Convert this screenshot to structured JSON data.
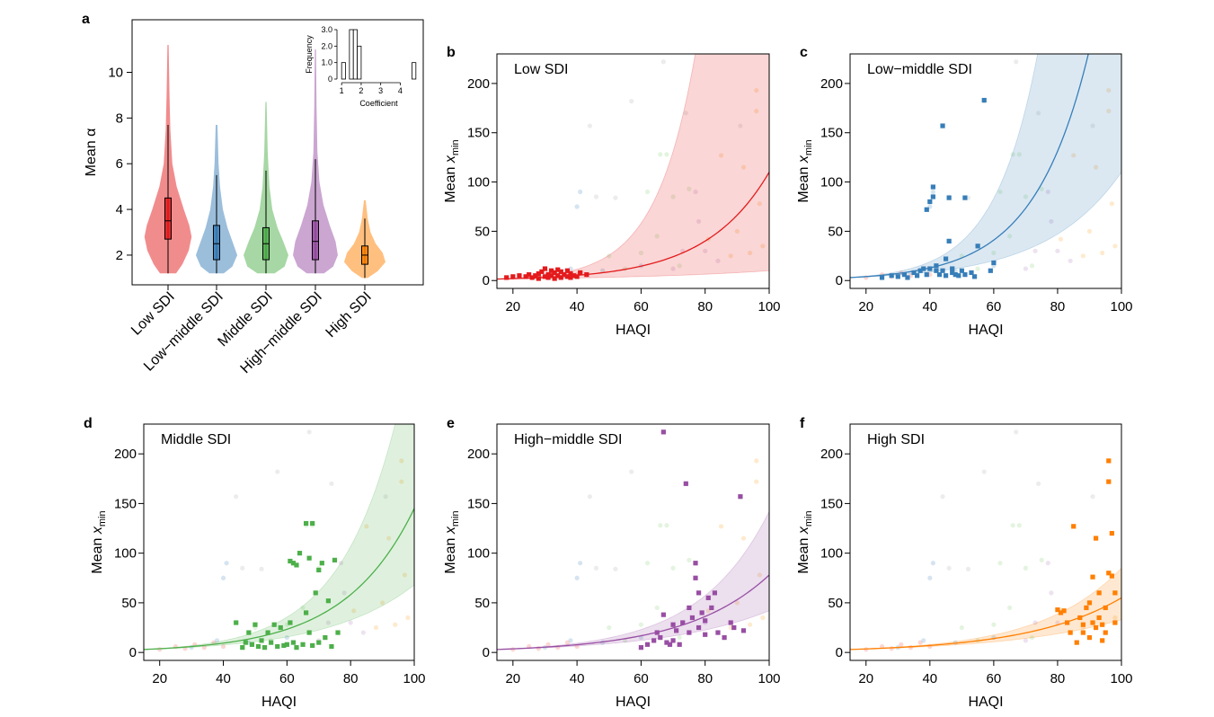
{
  "chart_data": [
    {
      "panel": "a",
      "type": "violin",
      "ylabel": "Mean α",
      "yticks": [
        2,
        4,
        6,
        8,
        10
      ],
      "ylim": [
        0.7,
        12.3
      ],
      "categories": [
        "Low SDI",
        "Low−middle SDI",
        "Middle SDI",
        "High−middle SDI",
        "High SDI"
      ],
      "colors": [
        "#e41a1c",
        "#377eb8",
        "#4daf4a",
        "#984ea3",
        "#ff7f00"
      ],
      "groups": [
        {
          "min": 1.2,
          "q1": 2.7,
          "median": 3.5,
          "q3": 4.5,
          "whisker_low": 1.2,
          "whisker_high": 7.7,
          "max": 11.2,
          "shape": [
            [
              1.2,
              0.28
            ],
            [
              1.6,
              0.5
            ],
            [
              2.2,
              0.72
            ],
            [
              2.8,
              0.82
            ],
            [
              3.3,
              0.74
            ],
            [
              4.0,
              0.55
            ],
            [
              5.0,
              0.3
            ],
            [
              6.0,
              0.15
            ],
            [
              7.5,
              0.08
            ],
            [
              9.0,
              0.05
            ],
            [
              11.2,
              0.02
            ]
          ]
        },
        {
          "min": 1.2,
          "q1": 1.8,
          "median": 2.5,
          "q3": 3.3,
          "whisker_low": 1.2,
          "whisker_high": 5.5,
          "max": 7.7,
          "shape": [
            [
              1.2,
              0.25
            ],
            [
              1.5,
              0.55
            ],
            [
              2.0,
              0.72
            ],
            [
              2.6,
              0.55
            ],
            [
              3.2,
              0.38
            ],
            [
              4.0,
              0.22
            ],
            [
              5.0,
              0.12
            ],
            [
              6.0,
              0.07
            ],
            [
              7.7,
              0.03
            ]
          ]
        },
        {
          "min": 1.2,
          "q1": 1.8,
          "median": 2.5,
          "q3": 3.2,
          "whisker_low": 1.2,
          "whisker_high": 5.7,
          "max": 8.7,
          "shape": [
            [
              1.2,
              0.3
            ],
            [
              1.5,
              0.65
            ],
            [
              2.0,
              0.78
            ],
            [
              2.6,
              0.6
            ],
            [
              3.2,
              0.4
            ],
            [
              4.0,
              0.22
            ],
            [
              5.0,
              0.12
            ],
            [
              6.5,
              0.06
            ],
            [
              8.7,
              0.02
            ]
          ]
        },
        {
          "min": 1.2,
          "q1": 1.8,
          "median": 2.6,
          "q3": 3.5,
          "whisker_low": 1.2,
          "whisker_high": 6.2,
          "max": 11.0,
          "shape": [
            [
              1.2,
              0.3
            ],
            [
              1.5,
              0.62
            ],
            [
              2.0,
              0.78
            ],
            [
              2.6,
              0.7
            ],
            [
              3.3,
              0.5
            ],
            [
              4.2,
              0.28
            ],
            [
              5.2,
              0.14
            ],
            [
              6.5,
              0.07
            ],
            [
              8.5,
              0.04
            ],
            [
              11.0,
              0.02
            ]
          ]
        },
        {
          "min": 1.0,
          "q1": 1.6,
          "median": 2.0,
          "q3": 2.4,
          "whisker_low": 1.0,
          "whisker_high": 3.6,
          "max": 4.4,
          "shape": [
            [
              1.0,
              0.1
            ],
            [
              1.3,
              0.45
            ],
            [
              1.7,
              0.72
            ],
            [
              2.1,
              0.62
            ],
            [
              2.5,
              0.38
            ],
            [
              3.0,
              0.2
            ],
            [
              3.6,
              0.1
            ],
            [
              4.4,
              0.03
            ]
          ]
        }
      ],
      "inset": {
        "type": "histogram",
        "xlabel": "Coefficient",
        "ylabel": "Frequency",
        "xticks": [
          1,
          2,
          3,
          4
        ],
        "yticks": [
          "0",
          "1.0",
          "2.0",
          "3.0"
        ],
        "bins": [
          [
            1.0,
            1.2,
            1
          ],
          [
            1.2,
            1.4,
            0
          ],
          [
            1.4,
            1.6,
            3
          ],
          [
            1.6,
            1.8,
            3
          ],
          [
            1.8,
            2.0,
            2
          ],
          [
            4.6,
            4.8,
            1
          ]
        ]
      }
    },
    {
      "panel": "b",
      "type": "scatter",
      "title": "Low SDI",
      "color": "#e41a1c",
      "xlabel": "HAQI",
      "ylabel": "Mean x",
      "ylabel_sub": "min",
      "xlim": [
        15,
        100
      ],
      "ylim": [
        -8,
        230
      ],
      "xticks": [
        20,
        40,
        60,
        80,
        100
      ],
      "yticks": [
        0,
        50,
        100,
        150,
        200
      ],
      "fit": {
        "x0": 15,
        "y0": 1.5,
        "y100": 110,
        "lo100": 10,
        "hi100": 1500
      },
      "points": [
        [
          18,
          3
        ],
        [
          20,
          4
        ],
        [
          22,
          5
        ],
        [
          24,
          4
        ],
        [
          25,
          6
        ],
        [
          26,
          3
        ],
        [
          27,
          5
        ],
        [
          28,
          7
        ],
        [
          28,
          2
        ],
        [
          29,
          9
        ],
        [
          30,
          4
        ],
        [
          30,
          12
        ],
        [
          31,
          6
        ],
        [
          31,
          3
        ],
        [
          32,
          10
        ],
        [
          32,
          5
        ],
        [
          33,
          8
        ],
        [
          33,
          2
        ],
        [
          34,
          11
        ],
        [
          34,
          5
        ],
        [
          35,
          3
        ],
        [
          35,
          9
        ],
        [
          36,
          6
        ],
        [
          37,
          4
        ],
        [
          37,
          10
        ],
        [
          38,
          7
        ],
        [
          38,
          3
        ],
        [
          39,
          5
        ],
        [
          40,
          4
        ],
        [
          41,
          8
        ],
        [
          43,
          6
        ]
      ]
    },
    {
      "panel": "c",
      "type": "scatter",
      "title": "Low−middle SDI",
      "color": "#377eb8",
      "xlabel": "HAQI",
      "ylabel": "Mean x",
      "ylabel_sub": "min",
      "xlim": [
        15,
        100
      ],
      "ylim": [
        -8,
        230
      ],
      "xticks": [
        20,
        40,
        60,
        80,
        100
      ],
      "yticks": [
        0,
        50,
        100,
        150,
        200
      ],
      "fit": {
        "x0": 15,
        "y0": 3,
        "y100": 420,
        "lo100": 110,
        "hi100": 1600
      },
      "points": [
        [
          25,
          3
        ],
        [
          28,
          5
        ],
        [
          30,
          4
        ],
        [
          32,
          6
        ],
        [
          33,
          3
        ],
        [
          35,
          8
        ],
        [
          36,
          5
        ],
        [
          37,
          10
        ],
        [
          38,
          12
        ],
        [
          39,
          6
        ],
        [
          39,
          72
        ],
        [
          40,
          80
        ],
        [
          40,
          12
        ],
        [
          41,
          95
        ],
        [
          41,
          85
        ],
        [
          42,
          10
        ],
        [
          42,
          15
        ],
        [
          43,
          6
        ],
        [
          44,
          157
        ],
        [
          44,
          10
        ],
        [
          45,
          5
        ],
        [
          45,
          22
        ],
        [
          46,
          84
        ],
        [
          46,
          40
        ],
        [
          47,
          12
        ],
        [
          47,
          8
        ],
        [
          48,
          6
        ],
        [
          49,
          5
        ],
        [
          50,
          10
        ],
        [
          51,
          84
        ],
        [
          51,
          6
        ],
        [
          53,
          8
        ],
        [
          54,
          4
        ],
        [
          55,
          35
        ],
        [
          57,
          183
        ],
        [
          59,
          10
        ],
        [
          60,
          18
        ]
      ]
    },
    {
      "panel": "d",
      "type": "scatter",
      "title": "Middle SDI",
      "color": "#4daf4a",
      "xlabel": "HAQI",
      "ylabel": "Mean x",
      "ylabel_sub": "min",
      "xlim": [
        15,
        100
      ],
      "ylim": [
        -8,
        230
      ],
      "xticks": [
        20,
        40,
        60,
        80,
        100
      ],
      "yticks": [
        0,
        50,
        100,
        150,
        200
      ],
      "fit": {
        "x0": 15,
        "y0": 3,
        "y100": 145,
        "lo100": 68,
        "hi100": 320
      },
      "points": [
        [
          44,
          30
        ],
        [
          46,
          5
        ],
        [
          47,
          10
        ],
        [
          48,
          20
        ],
        [
          49,
          8
        ],
        [
          50,
          28
        ],
        [
          51,
          6
        ],
        [
          52,
          12
        ],
        [
          53,
          5
        ],
        [
          54,
          20
        ],
        [
          55,
          10
        ],
        [
          56,
          28
        ],
        [
          57,
          6
        ],
        [
          58,
          25
        ],
        [
          59,
          7
        ],
        [
          60,
          8
        ],
        [
          61,
          92
        ],
        [
          61,
          30
        ],
        [
          62,
          90
        ],
        [
          62,
          10
        ],
        [
          63,
          88
        ],
        [
          63,
          5
        ],
        [
          64,
          100
        ],
        [
          65,
          8
        ],
        [
          66,
          130
        ],
        [
          66,
          40
        ],
        [
          67,
          95
        ],
        [
          67,
          20
        ],
        [
          68,
          130
        ],
        [
          68,
          7
        ],
        [
          69,
          60
        ],
        [
          70,
          83
        ],
        [
          70,
          10
        ],
        [
          71,
          90
        ],
        [
          72,
          15
        ],
        [
          73,
          52
        ],
        [
          74,
          6
        ],
        [
          75,
          93
        ],
        [
          76,
          20
        ]
      ]
    },
    {
      "panel": "e",
      "type": "scatter",
      "title": "High−middle SDI",
      "color": "#984ea3",
      "xlabel": "HAQI",
      "ylabel": "Mean x",
      "ylabel_sub": "min",
      "xlim": [
        15,
        100
      ],
      "ylim": [
        -8,
        230
      ],
      "xticks": [
        20,
        40,
        60,
        80,
        100
      ],
      "yticks": [
        0,
        50,
        100,
        150,
        200
      ],
      "fit": {
        "x0": 15,
        "y0": 3,
        "y100": 78,
        "lo100": 42,
        "hi100": 142
      },
      "points": [
        [
          60,
          5
        ],
        [
          62,
          8
        ],
        [
          64,
          12
        ],
        [
          65,
          20
        ],
        [
          66,
          15
        ],
        [
          67,
          38
        ],
        [
          67,
          222
        ],
        [
          68,
          10
        ],
        [
          69,
          8
        ],
        [
          70,
          12
        ],
        [
          70,
          28
        ],
        [
          71,
          22
        ],
        [
          72,
          8
        ],
        [
          73,
          30
        ],
        [
          74,
          170
        ],
        [
          75,
          20
        ],
        [
          75,
          45
        ],
        [
          76,
          35
        ],
        [
          77,
          90
        ],
        [
          77,
          75
        ],
        [
          78,
          60
        ],
        [
          78,
          25
        ],
        [
          79,
          40
        ],
        [
          80,
          18
        ],
        [
          80,
          32
        ],
        [
          81,
          55
        ],
        [
          82,
          45
        ],
        [
          83,
          60
        ],
        [
          84,
          20
        ],
        [
          86,
          15
        ],
        [
          88,
          30
        ],
        [
          89,
          25
        ],
        [
          91,
          157
        ],
        [
          92,
          22
        ]
      ]
    },
    {
      "panel": "f",
      "type": "scatter",
      "title": "High SDI",
      "color": "#ff7f00",
      "xlabel": "HAQI",
      "ylabel": "Mean x",
      "ylabel_sub": "min",
      "xlim": [
        15,
        100
      ],
      "ylim": [
        -8,
        230
      ],
      "xticks": [
        20,
        40,
        60,
        80,
        100
      ],
      "yticks": [
        0,
        50,
        100,
        150,
        200
      ],
      "fit": {
        "x0": 15,
        "y0": 3,
        "y100": 55,
        "lo100": 33,
        "hi100": 85
      },
      "points": [
        [
          80,
          43
        ],
        [
          81,
          40
        ],
        [
          82,
          42
        ],
        [
          83,
          30
        ],
        [
          84,
          20
        ],
        [
          85,
          127
        ],
        [
          86,
          10
        ],
        [
          87,
          35
        ],
        [
          88,
          28
        ],
        [
          88,
          20
        ],
        [
          89,
          45
        ],
        [
          90,
          50
        ],
        [
          90,
          15
        ],
        [
          91,
          76
        ],
        [
          91,
          30
        ],
        [
          92,
          115
        ],
        [
          92,
          25
        ],
        [
          93,
          60
        ],
        [
          93,
          35
        ],
        [
          94,
          28
        ],
        [
          94,
          12
        ],
        [
          95,
          45
        ],
        [
          95,
          20
        ],
        [
          96,
          193
        ],
        [
          96,
          172
        ],
        [
          96,
          80
        ],
        [
          97,
          77
        ],
        [
          97,
          120
        ],
        [
          98,
          30
        ],
        [
          98,
          60
        ]
      ]
    }
  ]
}
